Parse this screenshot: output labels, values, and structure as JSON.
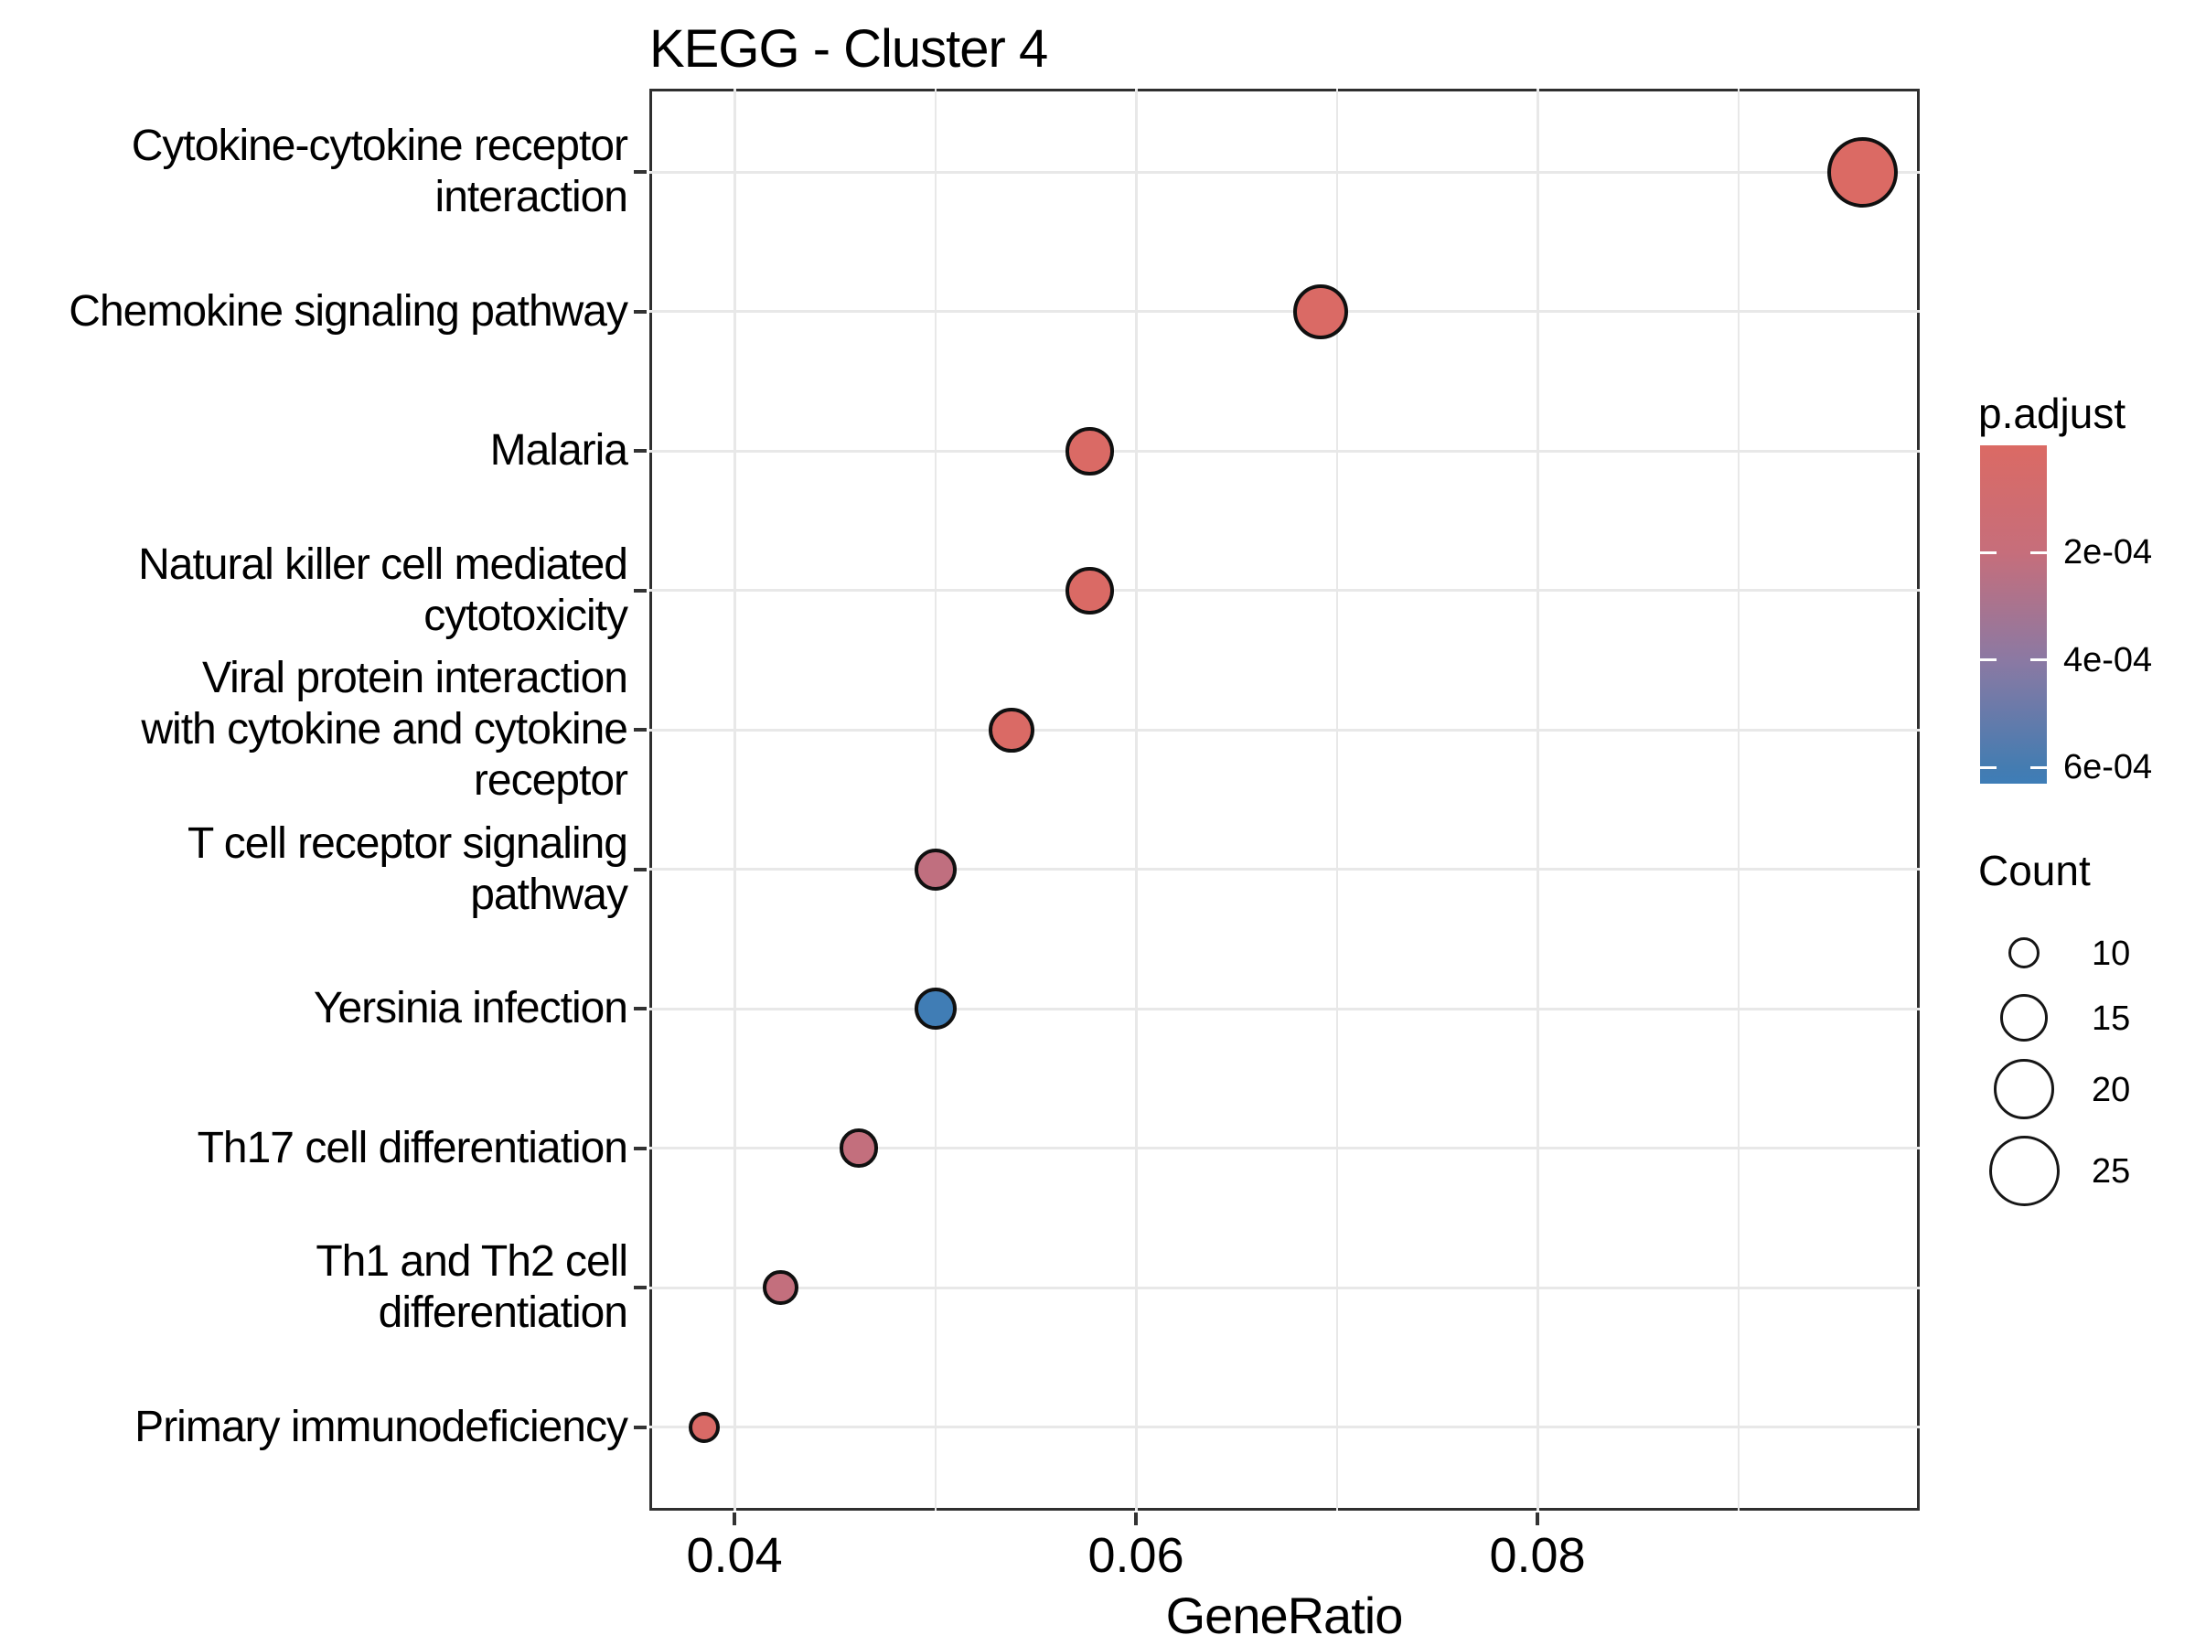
{
  "title": "KEGG - Cluster 4",
  "chart_data": {
    "type": "scatter",
    "title": "KEGG - Cluster 4",
    "xlabel": "GeneRatio",
    "ylabel": "",
    "xlim": [
      0.03576,
      0.09904
    ],
    "grid": true,
    "legend_position": "right",
    "x_ticks": [
      {
        "value": 0.04,
        "label": "0.04"
      },
      {
        "value": 0.06,
        "label": "0.06"
      },
      {
        "value": 0.08,
        "label": "0.08"
      }
    ],
    "x_minor_ticks": [
      0.05,
      0.07,
      0.09
    ],
    "points": [
      {
        "pathway": "Cytokine-cytokine receptor interaction",
        "label_lines": [
          "Cytokine-cytokine receptor",
          "interaction"
        ],
        "gene_ratio": 0.0962,
        "count": 25,
        "p_adjust": 2e-06
      },
      {
        "pathway": "Chemokine signaling pathway",
        "label_lines": [
          "Chemokine signaling pathway"
        ],
        "gene_ratio": 0.0692,
        "count": 18,
        "p_adjust": 5e-06
      },
      {
        "pathway": "Malaria",
        "label_lines": [
          "Malaria"
        ],
        "gene_ratio": 0.0577,
        "count": 15,
        "p_adjust": 8e-06
      },
      {
        "pathway": "Natural killer cell mediated cytotoxicity",
        "label_lines": [
          "Natural killer cell mediated",
          "cytotoxicity"
        ],
        "gene_ratio": 0.0577,
        "count": 15,
        "p_adjust": 9e-06
      },
      {
        "pathway": "Viral protein interaction with cytokine and cytokine receptor",
        "label_lines": [
          "Viral protein interaction",
          "with cytokine and cytokine",
          "receptor"
        ],
        "gene_ratio": 0.0538,
        "count": 14,
        "p_adjust": 1.2e-05
      },
      {
        "pathway": "T cell receptor signaling pathway",
        "label_lines": [
          "T cell receptor signaling",
          "pathway"
        ],
        "gene_ratio": 0.05,
        "count": 13,
        "p_adjust": 0.00022
      },
      {
        "pathway": "Yersinia infection",
        "label_lines": [
          "Yersinia infection"
        ],
        "gene_ratio": 0.05,
        "count": 13,
        "p_adjust": 0.00062
      },
      {
        "pathway": "Th17 cell differentiation",
        "label_lines": [
          "Th17 cell differentiation"
        ],
        "gene_ratio": 0.0462,
        "count": 12,
        "p_adjust": 0.00021
      },
      {
        "pathway": "Th1 and Th2 cell differentiation",
        "label_lines": [
          "Th1 and Th2 cell",
          "differentiation"
        ],
        "gene_ratio": 0.0423,
        "count": 11,
        "p_adjust": 0.00021
      },
      {
        "pathway": "Primary immunodeficiency",
        "label_lines": [
          "Primary immunodeficiency"
        ],
        "gene_ratio": 0.0385,
        "count": 10,
        "p_adjust": 1.5e-05
      }
    ],
    "color_legend": {
      "title": "p.adjust",
      "ticks": [
        {
          "value": 0.0002,
          "label": "2e-04"
        },
        {
          "value": 0.0004,
          "label": "4e-04"
        },
        {
          "value": 0.0006,
          "label": "6e-04"
        }
      ],
      "domain_max": 0.00063,
      "gradient_stops": [
        {
          "t": 0.0,
          "color": "#DB6A64"
        },
        {
          "t": 0.3175,
          "color": "#C66E7B"
        },
        {
          "t": 0.635,
          "color": "#8B79A3"
        },
        {
          "t": 0.952,
          "color": "#447CB1"
        },
        {
          "t": 1.0,
          "color": "#3E7DB7"
        }
      ]
    },
    "size_legend": {
      "title": "Count",
      "values": [
        10,
        15,
        20,
        25
      ]
    },
    "style": {
      "dot_stroke": "#101010",
      "gridline_color": "#e8e8e8",
      "panel_border": "#2f2f2f",
      "background": "#ffffff"
    }
  }
}
